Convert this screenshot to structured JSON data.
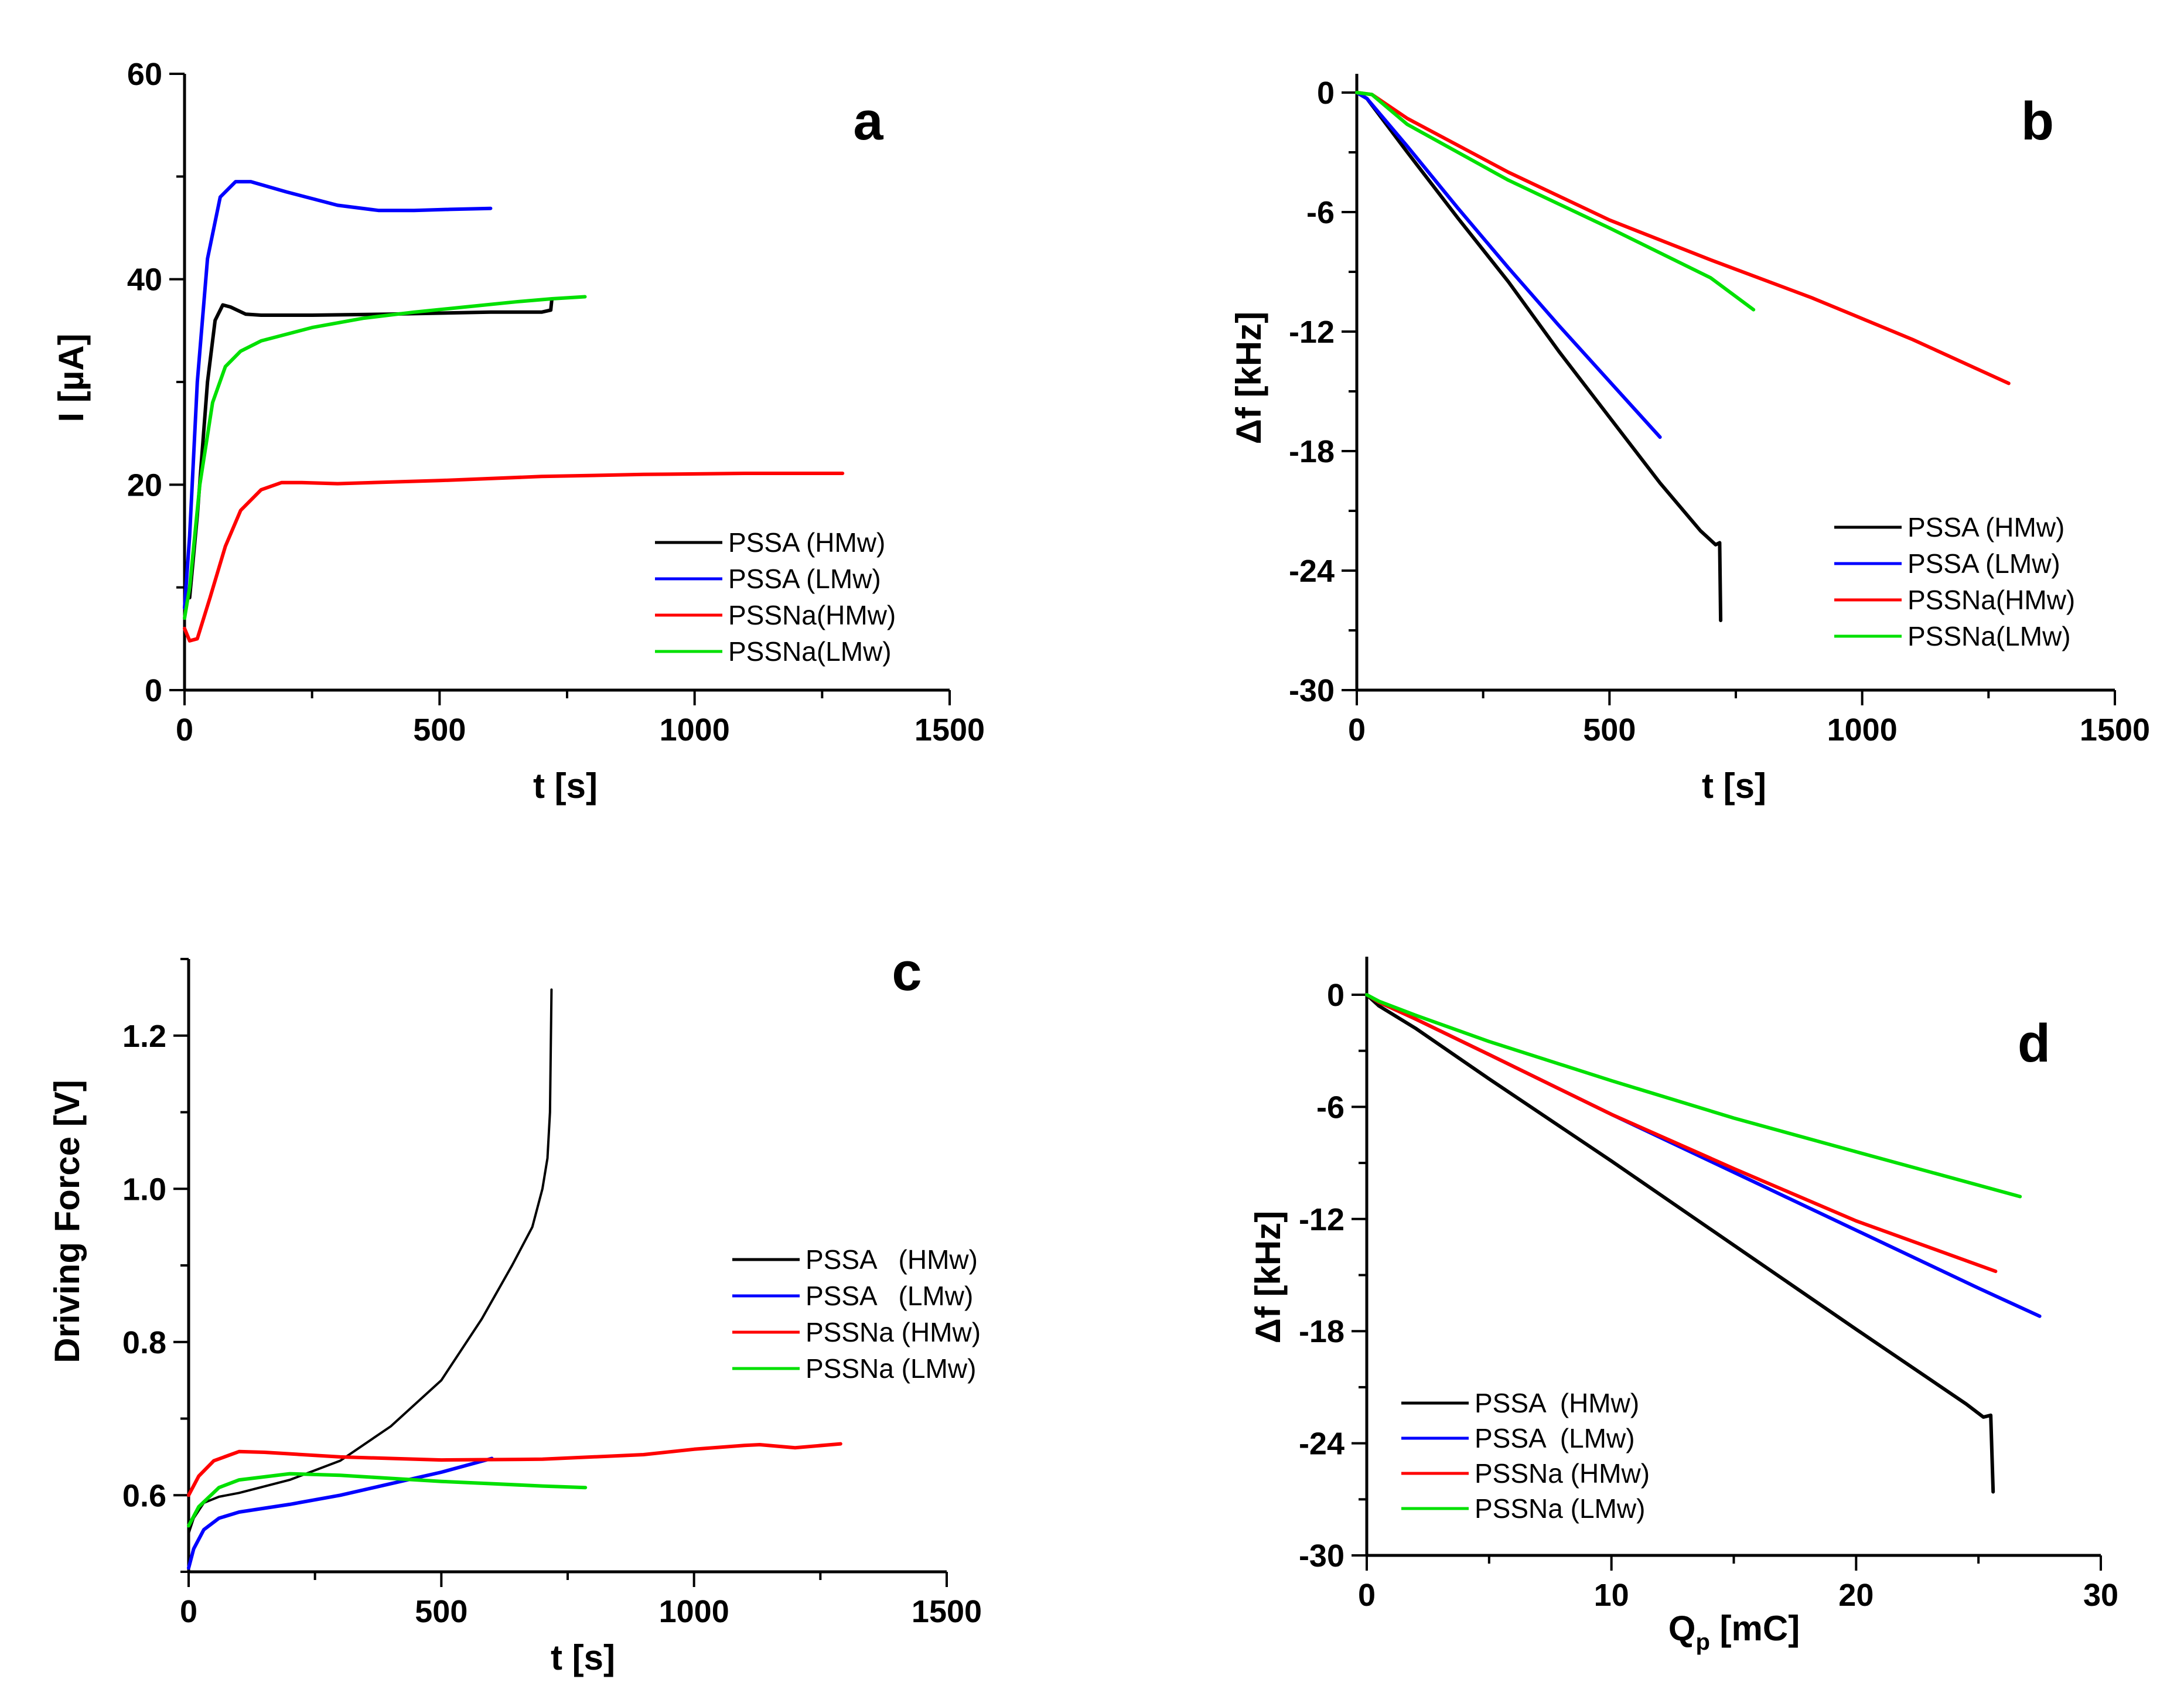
{
  "chart_data": [
    {
      "panel": "a",
      "type": "line",
      "xlabel": "t [s]",
      "ylabel": "I [µA]",
      "xlim": [
        0,
        1500
      ],
      "ylim": [
        0,
        60
      ],
      "xticks": [
        0,
        500,
        1000,
        1500
      ],
      "yticks": [
        0,
        20,
        40,
        60
      ],
      "legend_position": "right",
      "series": [
        {
          "name": "PSSA (HMw)",
          "color": "#000000",
          "points": [
            [
              0,
              10
            ],
            [
              10,
              9
            ],
            [
              25,
              17
            ],
            [
              45,
              30
            ],
            [
              60,
              36
            ],
            [
              75,
              37.5
            ],
            [
              90,
              37.3
            ],
            [
              120,
              36.6
            ],
            [
              150,
              36.5
            ],
            [
              250,
              36.5
            ],
            [
              400,
              36.6
            ],
            [
              500,
              36.7
            ],
            [
              600,
              36.8
            ],
            [
              700,
              36.8
            ],
            [
              718,
              37
            ],
            [
              720,
              38
            ]
          ]
        },
        {
          "name": "PSSA (LMw)",
          "color": "#0000ff",
          "points": [
            [
              0,
              8
            ],
            [
              10,
              15
            ],
            [
              25,
              30
            ],
            [
              45,
              42
            ],
            [
              70,
              48
            ],
            [
              100,
              49.5
            ],
            [
              130,
              49.5
            ],
            [
              200,
              48.5
            ],
            [
              300,
              47.2
            ],
            [
              380,
              46.7
            ],
            [
              450,
              46.7
            ],
            [
              520,
              46.8
            ],
            [
              600,
              46.9
            ]
          ]
        },
        {
          "name": "PSSNa(HMw)",
          "color": "#ff0000",
          "points": [
            [
              0,
              6
            ],
            [
              10,
              4.8
            ],
            [
              25,
              5
            ],
            [
              50,
              9
            ],
            [
              80,
              14
            ],
            [
              110,
              17.5
            ],
            [
              150,
              19.5
            ],
            [
              190,
              20.2
            ],
            [
              230,
              20.2
            ],
            [
              300,
              20.1
            ],
            [
              500,
              20.4
            ],
            [
              700,
              20.8
            ],
            [
              900,
              21
            ],
            [
              1100,
              21.1
            ],
            [
              1290,
              21.1
            ]
          ]
        },
        {
          "name": "PSSNa(LMw)",
          "color": "#00e000",
          "points": [
            [
              0,
              7
            ],
            [
              10,
              10
            ],
            [
              30,
              20
            ],
            [
              55,
              28
            ],
            [
              80,
              31.5
            ],
            [
              110,
              33
            ],
            [
              150,
              34
            ],
            [
              250,
              35.3
            ],
            [
              350,
              36.2
            ],
            [
              450,
              36.8
            ],
            [
              550,
              37.3
            ],
            [
              650,
              37.8
            ],
            [
              720,
              38.1
            ],
            [
              785,
              38.3
            ]
          ]
        }
      ],
      "annotation": "a"
    },
    {
      "panel": "b",
      "type": "line",
      "xlabel": "t [s]",
      "ylabel": "Δf [kHz]",
      "xlim": [
        0,
        1500
      ],
      "ylim": [
        -30,
        0
      ],
      "xticks": [
        0,
        500,
        1000,
        1500
      ],
      "yticks": [
        0,
        -6,
        -12,
        -18,
        -24,
        -30
      ],
      "legend_position": "right",
      "series": [
        {
          "name": "PSSA (HMw)",
          "color": "#000000",
          "points": [
            [
              0,
              0
            ],
            [
              20,
              -0.3
            ],
            [
              100,
              -3
            ],
            [
              200,
              -6.3
            ],
            [
              300,
              -9.5
            ],
            [
              400,
              -13
            ],
            [
              500,
              -16.3
            ],
            [
              600,
              -19.6
            ],
            [
              680,
              -22
            ],
            [
              710,
              -22.7
            ],
            [
              718,
              -22.6
            ],
            [
              720,
              -26.5
            ]
          ]
        },
        {
          "name": "PSSA (LMw)",
          "color": "#0000ff",
          "points": [
            [
              0,
              0
            ],
            [
              20,
              -0.3
            ],
            [
              100,
              -2.7
            ],
            [
              200,
              -5.8
            ],
            [
              300,
              -8.8
            ],
            [
              400,
              -11.7
            ],
            [
              500,
              -14.5
            ],
            [
              600,
              -17.3
            ]
          ]
        },
        {
          "name": "PSSNa(HMw)",
          "color": "#ff0000",
          "points": [
            [
              0,
              0
            ],
            [
              30,
              -0.1
            ],
            [
              100,
              -1.3
            ],
            [
              300,
              -4
            ],
            [
              500,
              -6.4
            ],
            [
              700,
              -8.4
            ],
            [
              900,
              -10.3
            ],
            [
              1100,
              -12.4
            ],
            [
              1290,
              -14.6
            ]
          ]
        },
        {
          "name": "PSSNa(LMw)",
          "color": "#00e000",
          "points": [
            [
              0,
              0
            ],
            [
              30,
              -0.1
            ],
            [
              100,
              -1.6
            ],
            [
              300,
              -4.4
            ],
            [
              500,
              -6.8
            ],
            [
              700,
              -9.3
            ],
            [
              785,
              -10.9
            ]
          ]
        }
      ],
      "annotation": "b"
    },
    {
      "panel": "c",
      "type": "line",
      "xlabel": "t [s]",
      "ylabel": "Driving Force [V]",
      "xlim": [
        0,
        1500
      ],
      "ylim": [
        0.5,
        1.3
      ],
      "xticks": [
        0,
        500,
        1000,
        1500
      ],
      "yticks": [
        0.6,
        0.8,
        1.0,
        1.2
      ],
      "ytick_labels": [
        "0.6",
        "0.8",
        "1.0",
        "1.2"
      ],
      "legend_position": "right",
      "series": [
        {
          "name": "PSSA   (HMw)",
          "color": "#000000",
          "points": [
            [
              0,
              0.55
            ],
            [
              10,
              0.57
            ],
            [
              30,
              0.59
            ],
            [
              60,
              0.598
            ],
            [
              100,
              0.603
            ],
            [
              200,
              0.62
            ],
            [
              300,
              0.645
            ],
            [
              400,
              0.69
            ],
            [
              500,
              0.75
            ],
            [
              580,
              0.83
            ],
            [
              640,
              0.9
            ],
            [
              680,
              0.95
            ],
            [
              700,
              1.0
            ],
            [
              710,
              1.04
            ],
            [
              715,
              1.1
            ],
            [
              718,
              1.26
            ]
          ]
        },
        {
          "name": "PSSA   (LMw)",
          "color": "#0000ff",
          "points": [
            [
              0,
              0.505
            ],
            [
              10,
              0.53
            ],
            [
              30,
              0.555
            ],
            [
              60,
              0.57
            ],
            [
              100,
              0.578
            ],
            [
              200,
              0.588
            ],
            [
              300,
              0.6
            ],
            [
              400,
              0.615
            ],
            [
              500,
              0.63
            ],
            [
              600,
              0.648
            ]
          ]
        },
        {
          "name": "PSSNa (HMw)",
          "color": "#ff0000",
          "points": [
            [
              0,
              0.6
            ],
            [
              20,
              0.625
            ],
            [
              50,
              0.645
            ],
            [
              100,
              0.657
            ],
            [
              150,
              0.656
            ],
            [
              300,
              0.65
            ],
            [
              500,
              0.646
            ],
            [
              700,
              0.647
            ],
            [
              900,
              0.653
            ],
            [
              1000,
              0.66
            ],
            [
              1100,
              0.665
            ],
            [
              1130,
              0.666
            ],
            [
              1200,
              0.662
            ],
            [
              1290,
              0.667
            ]
          ]
        },
        {
          "name": "PSSNa (LMw)",
          "color": "#00e000",
          "points": [
            [
              0,
              0.56
            ],
            [
              20,
              0.585
            ],
            [
              60,
              0.61
            ],
            [
              100,
              0.62
            ],
            [
              200,
              0.628
            ],
            [
              300,
              0.626
            ],
            [
              400,
              0.622
            ],
            [
              500,
              0.618
            ],
            [
              600,
              0.615
            ],
            [
              700,
              0.612
            ],
            [
              785,
              0.61
            ]
          ]
        }
      ],
      "annotation": "c"
    },
    {
      "panel": "d",
      "type": "line",
      "xlabel": "Q",
      "xlabel_sub": "p",
      "xlabel_unit": " [mC]",
      "ylabel": "Δf [kHz]",
      "xlim": [
        0,
        30
      ],
      "ylim": [
        -30,
        0
      ],
      "xticks": [
        0,
        10,
        20,
        30
      ],
      "yticks": [
        0,
        -6,
        -12,
        -18,
        -24,
        -30
      ],
      "legend_position": "lower-left",
      "series": [
        {
          "name": "PSSA  (HMw)",
          "color": "#000000",
          "points": [
            [
              0,
              0
            ],
            [
              0.5,
              -0.6
            ],
            [
              2,
              -1.8
            ],
            [
              5,
              -4.5
            ],
            [
              10,
              -8.9
            ],
            [
              15,
              -13.4
            ],
            [
              20,
              -17.9
            ],
            [
              24.5,
              -21.9
            ],
            [
              25.2,
              -22.6
            ],
            [
              25.5,
              -22.5
            ],
            [
              25.6,
              -26.6
            ]
          ]
        },
        {
          "name": "PSSA  (LMw)",
          "color": "#0000ff",
          "points": [
            [
              0,
              0
            ],
            [
              0.5,
              -0.4
            ],
            [
              2,
              -1.3
            ],
            [
              5,
              -3.2
            ],
            [
              10,
              -6.4
            ],
            [
              15,
              -9.5
            ],
            [
              20,
              -12.6
            ],
            [
              25,
              -15.7
            ],
            [
              27.5,
              -17.2
            ]
          ]
        },
        {
          "name": "PSSNa (HMw)",
          "color": "#ff0000",
          "points": [
            [
              0,
              0
            ],
            [
              0.5,
              -0.4
            ],
            [
              2,
              -1.3
            ],
            [
              5,
              -3.2
            ],
            [
              10,
              -6.4
            ],
            [
              15,
              -9.3
            ],
            [
              20,
              -12.1
            ],
            [
              25.7,
              -14.8
            ]
          ]
        },
        {
          "name": "PSSNa (LMw)",
          "color": "#00e000",
          "points": [
            [
              0,
              0
            ],
            [
              0.5,
              -0.35
            ],
            [
              2,
              -1.1
            ],
            [
              5,
              -2.5
            ],
            [
              10,
              -4.6
            ],
            [
              15,
              -6.6
            ],
            [
              20,
              -8.4
            ],
            [
              26.7,
              -10.8
            ]
          ]
        }
      ],
      "annotation": "d"
    }
  ]
}
